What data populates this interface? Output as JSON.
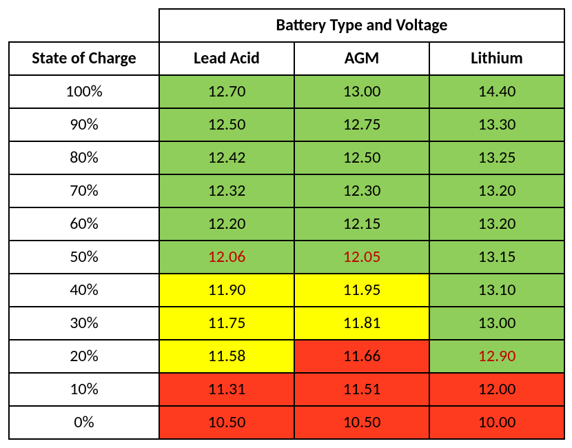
{
  "table": {
    "title": "Battery Type and Voltage",
    "row_header": "State of Charge",
    "columns": [
      "Lead Acid",
      "AGM",
      "Lithium"
    ],
    "soc_labels": [
      "100%",
      "90%",
      "80%",
      "70%",
      "60%",
      "50%",
      "40%",
      "30%",
      "20%",
      "10%",
      "0%"
    ],
    "values": [
      [
        "12.70",
        "13.00",
        "14.40"
      ],
      [
        "12.50",
        "12.75",
        "13.30"
      ],
      [
        "12.42",
        "12.50",
        "13.25"
      ],
      [
        "12.32",
        "12.30",
        "13.20"
      ],
      [
        "12.20",
        "12.15",
        "13.20"
      ],
      [
        "12.06",
        "12.05",
        "13.15"
      ],
      [
        "11.90",
        "11.95",
        "13.10"
      ],
      [
        "11.75",
        "11.81",
        "13.00"
      ],
      [
        "11.58",
        "11.66",
        "12.90"
      ],
      [
        "11.31",
        "11.51",
        "12.00"
      ],
      [
        "10.50",
        "10.50",
        "10.00"
      ]
    ],
    "cell_bg": [
      [
        "green",
        "green",
        "green"
      ],
      [
        "green",
        "green",
        "green"
      ],
      [
        "green",
        "green",
        "green"
      ],
      [
        "green",
        "green",
        "green"
      ],
      [
        "green",
        "green",
        "green"
      ],
      [
        "green",
        "green",
        "green"
      ],
      [
        "yellow",
        "yellow",
        "green"
      ],
      [
        "yellow",
        "yellow",
        "green"
      ],
      [
        "yellow",
        "red",
        "green"
      ],
      [
        "red",
        "red",
        "red"
      ],
      [
        "red",
        "red",
        "red"
      ]
    ],
    "cell_text_color": [
      [
        "black",
        "black",
        "black"
      ],
      [
        "black",
        "black",
        "black"
      ],
      [
        "black",
        "black",
        "black"
      ],
      [
        "black",
        "black",
        "black"
      ],
      [
        "black",
        "black",
        "black"
      ],
      [
        "redtext",
        "redtext",
        "black"
      ],
      [
        "black",
        "black",
        "black"
      ],
      [
        "black",
        "black",
        "black"
      ],
      [
        "black",
        "black",
        "redtext"
      ],
      [
        "black",
        "black",
        "black"
      ],
      [
        "black",
        "black",
        "black"
      ]
    ],
    "palette": {
      "green": "#8fce5a",
      "yellow": "#ffff00",
      "red": "#ff3b1f",
      "black": "#000000",
      "redtext": "#c00000",
      "white": "#ffffff",
      "border": "#000000"
    }
  }
}
